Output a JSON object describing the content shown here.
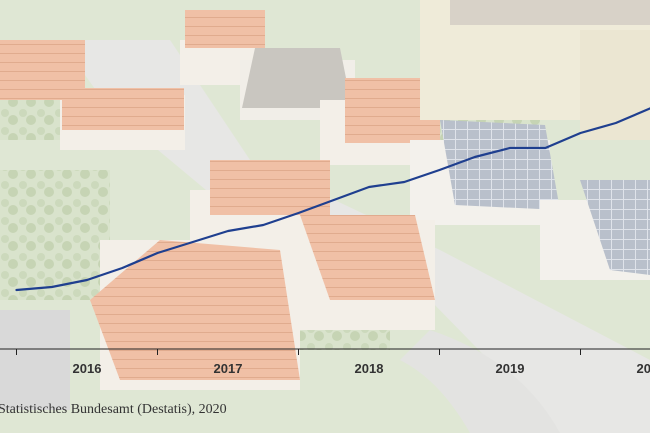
{
  "chart_data": {
    "type": "line",
    "x": [
      "2015-07",
      "2015-10",
      "2016-01",
      "2016-04",
      "2016-07",
      "2016-10",
      "2017-01",
      "2017-04",
      "2017-07",
      "2017-10",
      "2018-01",
      "2018-04",
      "2018-07",
      "2018-10",
      "2019-01",
      "2019-04",
      "2019-07",
      "2019-10",
      "2020-01",
      "2020-04"
    ],
    "series": [
      {
        "values": [
          100.0,
          100.6,
          102.0,
          104.4,
          107.4,
          109.6,
          111.8,
          113.0,
          115.4,
          118.0,
          120.6,
          121.6,
          124.0,
          126.6,
          128.4,
          128.4,
          131.4,
          133.4,
          136.4,
          136.6
        ]
      }
    ],
    "xlabel": "",
    "ylabel": "",
    "xticks": [
      "2016",
      "2017",
      "2018",
      "2019",
      "2020"
    ],
    "source": "Statistisches Bundesamt (Destatis), 2020",
    "line_color": "#1f3f8f",
    "background": "faded aerial photograph of a residential neighbourhood with red-roofed houses"
  }
}
